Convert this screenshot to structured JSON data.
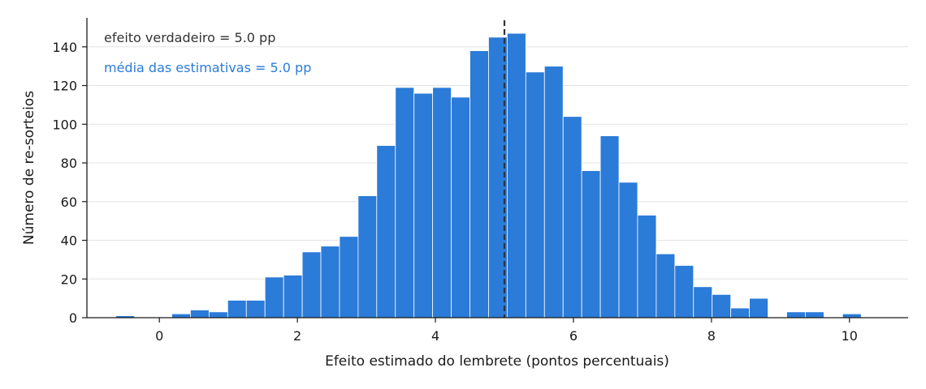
{
  "chart_data": {
    "type": "bar",
    "title": "",
    "xlabel": "Efeito estimado do lembrete (pontos percentuais)",
    "ylabel": "Número de re-sorteios",
    "xlim": [
      -1.05,
      10.85
    ],
    "ylim": [
      0,
      155
    ],
    "x_ticks": [
      0,
      2,
      4,
      6,
      8,
      10
    ],
    "y_ticks": [
      0,
      20,
      40,
      60,
      80,
      100,
      120,
      140
    ],
    "grid": "horizontal",
    "bin_edges": [
      -0.9,
      -0.63,
      -0.36,
      -0.09,
      0.18,
      0.45,
      0.72,
      0.99,
      1.26,
      1.53,
      1.8,
      2.07,
      2.34,
      2.61,
      2.88,
      3.15,
      3.42,
      3.69,
      3.96,
      4.23,
      4.5,
      4.77,
      5.04,
      5.31,
      5.58,
      5.85,
      6.12,
      6.39,
      6.66,
      6.93,
      7.2,
      7.47,
      7.74,
      8.01,
      8.28,
      8.55,
      8.82,
      9.09,
      9.36,
      9.63,
      9.9,
      10.17,
      10.44
    ],
    "counts": [
      0,
      1,
      0,
      0,
      2,
      4,
      3,
      9,
      9,
      21,
      22,
      34,
      37,
      42,
      63,
      89,
      119,
      116,
      119,
      114,
      138,
      145,
      147,
      127,
      130,
      104,
      76,
      94,
      70,
      53,
      33,
      27,
      16,
      12,
      5,
      10,
      0,
      3,
      3,
      0,
      2,
      0
    ],
    "bar_color": "#2b7bd8",
    "true_effect_x": 5.0,
    "annotations": {
      "true_effect": "efeito verdadeiro = 5.0 pp",
      "mean_estimate": "média das estimativas = 5.0 pp"
    },
    "annotation_colors": {
      "true_effect": "#333333",
      "mean_estimate": "#2b7bd8"
    }
  }
}
